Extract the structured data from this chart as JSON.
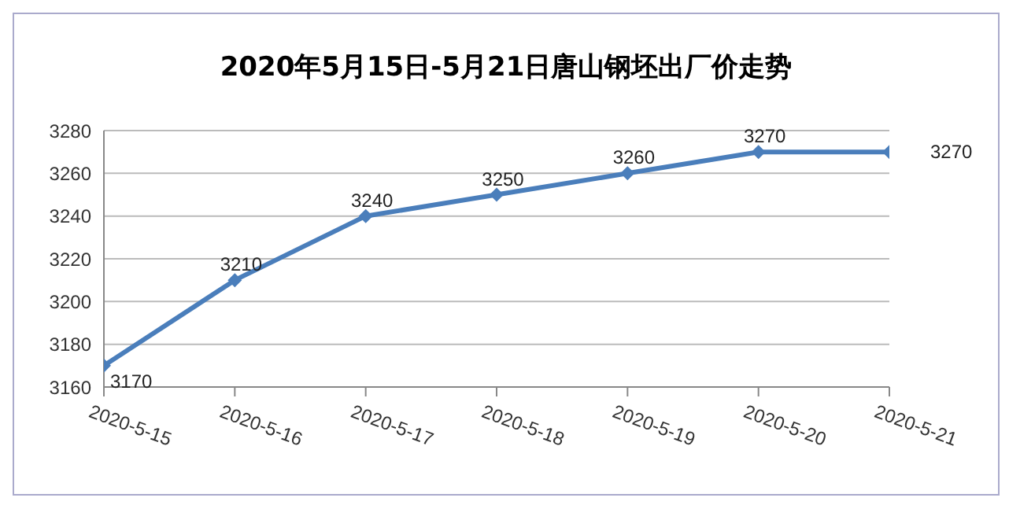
{
  "chart_data": {
    "type": "line",
    "title": "2020年5月15日-5月21日唐山钢坯出厂价走势",
    "categories": [
      "2020-5-15",
      "2020-5-16",
      "2020-5-17",
      "2020-5-18",
      "2020-5-19",
      "2020-5-20",
      "2020-5-21"
    ],
    "series": [
      {
        "color": "#4a7ebb",
        "values": [
          3170,
          3210,
          3240,
          3250,
          3260,
          3270,
          3270
        ]
      }
    ],
    "ylim": [
      3160,
      3280
    ],
    "yticks": [
      3160,
      3180,
      3200,
      3220,
      3240,
      3260,
      3280
    ],
    "grid": "y",
    "marker": "diamond",
    "line_style": "solid",
    "data_labels": true,
    "legend": false
  }
}
